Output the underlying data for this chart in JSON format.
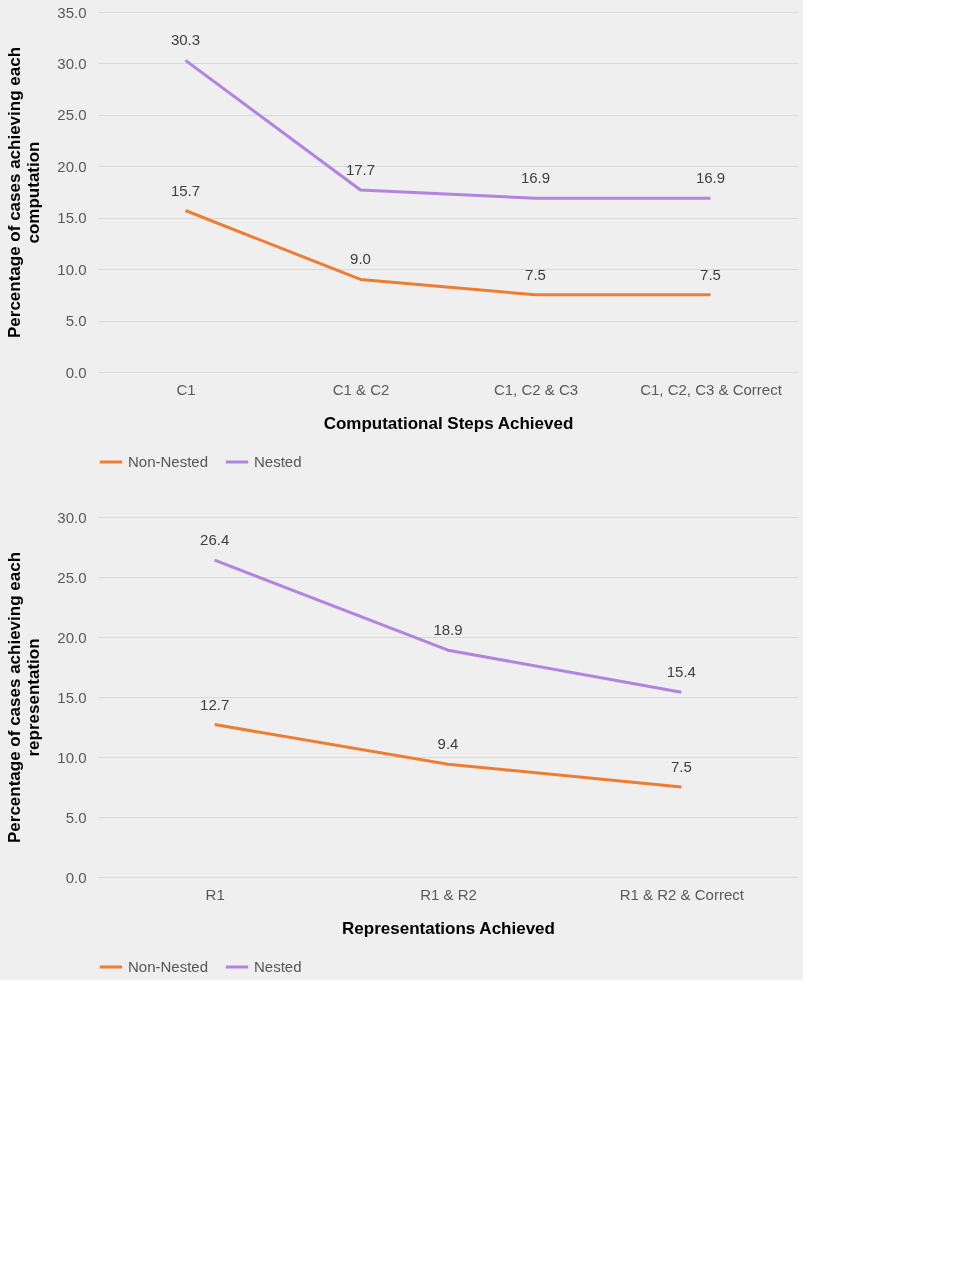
{
  "chart_data": [
    {
      "type": "line",
      "xlabel": "Computational  Steps Achieved",
      "ylabel": "Percentage of cases achieving each computation",
      "categories": [
        "C1",
        "C1 & C2",
        "C1, C2 & C3",
        "C1, C2, C3 & Correct"
      ],
      "series": [
        {
          "name": "Non-Nested",
          "color": "#ed7d31",
          "values": [
            15.7,
            9.0,
            7.5,
            7.5
          ],
          "value_labels": [
            "15.7",
            "9.0",
            "7.5",
            "7.5"
          ]
        },
        {
          "name": "Nested",
          "color": "#b383e0",
          "values": [
            30.3,
            17.7,
            16.9,
            16.9
          ],
          "value_labels": [
            "30.3",
            "17.7",
            "16.9",
            "16.9"
          ]
        }
      ],
      "ylim": [
        0,
        35
      ],
      "yticks": [
        {
          "value": 0,
          "label": "0.0"
        },
        {
          "value": 5,
          "label": "5.0"
        },
        {
          "value": 10,
          "label": "10.0"
        },
        {
          "value": 15,
          "label": "15.0"
        },
        {
          "value": 20,
          "label": "20.0"
        },
        {
          "value": 25,
          "label": "25.0"
        },
        {
          "value": 30,
          "label": "30.0"
        },
        {
          "value": 35,
          "label": "35.0"
        }
      ],
      "grid": "y",
      "legend": "bottom",
      "marker": "none",
      "line_style": "solid"
    },
    {
      "type": "line",
      "xlabel": "Representations Achieved",
      "ylabel": "Percentage of cases achieving each representation",
      "categories": [
        "R1",
        "R1 & R2",
        "R1 & R2 & Correct"
      ],
      "series": [
        {
          "name": "Non-Nested",
          "color": "#ed7d31",
          "values": [
            12.7,
            9.4,
            7.5
          ],
          "value_labels": [
            "12.7",
            "9.4",
            "7.5"
          ]
        },
        {
          "name": "Nested",
          "color": "#b383e0",
          "values": [
            26.4,
            18.9,
            15.4
          ],
          "value_labels": [
            "26.4",
            "18.9",
            "15.4"
          ]
        }
      ],
      "ylim": [
        0,
        30
      ],
      "yticks": [
        {
          "value": 0,
          "label": "0.0"
        },
        {
          "value": 5,
          "label": "5.0"
        },
        {
          "value": 10,
          "label": "10.0"
        },
        {
          "value": 15,
          "label": "15.0"
        },
        {
          "value": 20,
          "label": "20.0"
        },
        {
          "value": 25,
          "label": "25.0"
        },
        {
          "value": 30,
          "label": "30.0"
        }
      ],
      "grid": "y",
      "legend": "bottom",
      "marker": "none",
      "line_style": "solid"
    }
  ]
}
